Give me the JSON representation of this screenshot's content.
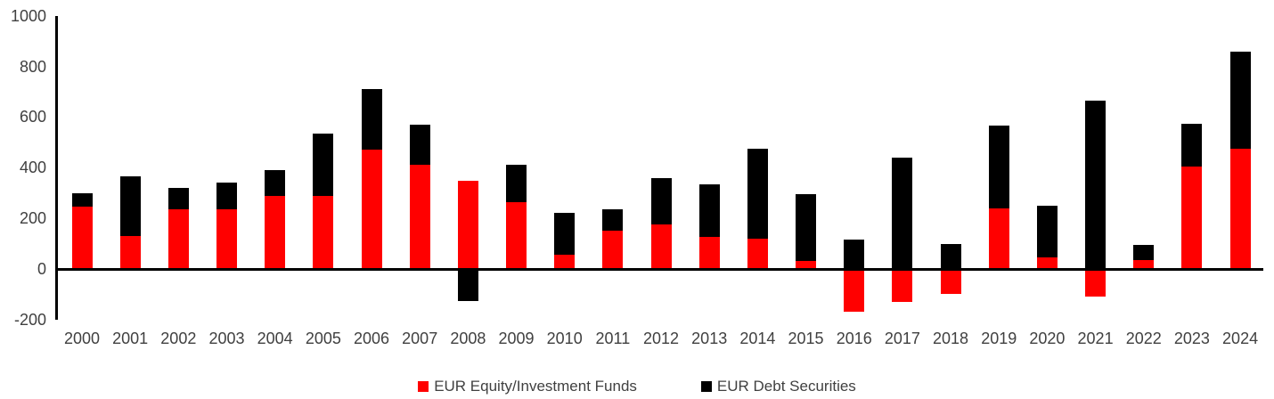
{
  "chart_data": {
    "type": "bar",
    "stacked": true,
    "title": "",
    "xlabel": "",
    "ylabel": "",
    "categories": [
      "2000",
      "2001",
      "2002",
      "2003",
      "2004",
      "2005",
      "2006",
      "2007",
      "2008",
      "2009",
      "2010",
      "2011",
      "2012",
      "2013",
      "2014",
      "2015",
      "2016",
      "2017",
      "2018",
      "2019",
      "2020",
      "2021",
      "2022",
      "2023",
      "2024"
    ],
    "series": [
      {
        "name": "EUR Equity/Investment Funds",
        "color": "#ff0000",
        "values": [
          245,
          130,
          235,
          235,
          290,
          290,
          470,
          410,
          350,
          265,
          55,
          150,
          175,
          125,
          120,
          30,
          -170,
          -130,
          -100,
          240,
          45,
          -110,
          35,
          405,
          475
        ]
      },
      {
        "name": "EUR Debt Securities",
        "color": "#000000",
        "values": [
          55,
          235,
          85,
          105,
          100,
          245,
          240,
          160,
          -125,
          145,
          165,
          85,
          185,
          210,
          355,
          265,
          115,
          440,
          100,
          325,
          205,
          665,
          60,
          170,
          385
        ]
      }
    ],
    "ylim": [
      -200,
      1000
    ],
    "yticks": [
      1000,
      800,
      600,
      400,
      200,
      0,
      -200
    ],
    "grid": false,
    "legend_position": "bottom"
  },
  "colors": {
    "axis": "#000000",
    "tick_label": "#404040"
  }
}
